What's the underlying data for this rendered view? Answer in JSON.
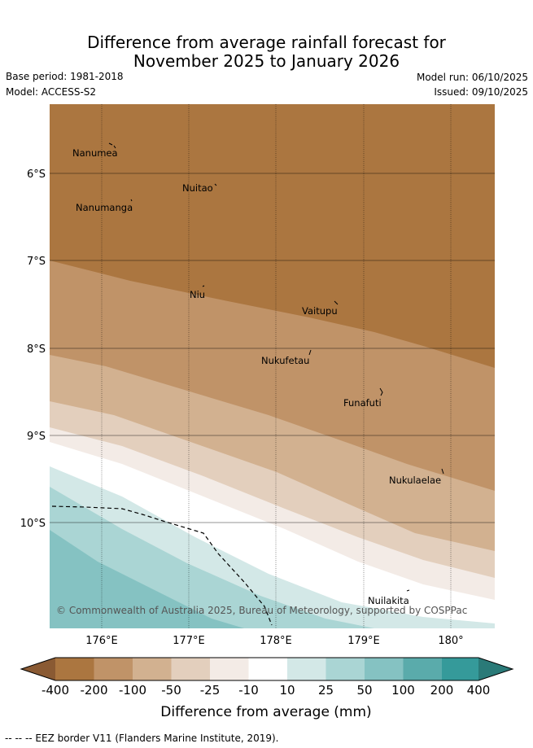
{
  "header": {
    "title_line1": "Difference from average rainfall forecast for",
    "title_line2": "November 2025 to January 2026",
    "base_period": "Base period: 1981-2018",
    "model": "Model: ACCESS-S2",
    "model_run": "Model run: 06/10/2025",
    "issued": "Issued: 09/10/2025"
  },
  "map": {
    "lat_labels": [
      "6°S",
      "7°S",
      "8°S",
      "9°S",
      "10°S"
    ],
    "lon_labels": [
      "176°E",
      "177°E",
      "178°E",
      "179°E",
      "180°"
    ],
    "places": [
      {
        "name": "Nanumea"
      },
      {
        "name": "Nuitao"
      },
      {
        "name": "Nanumanga"
      },
      {
        "name": "Niu"
      },
      {
        "name": "Vaitupu"
      },
      {
        "name": "Nukufetau"
      },
      {
        "name": "Funafuti"
      },
      {
        "name": "Nukulaelae"
      },
      {
        "name": "Nuilakita"
      }
    ],
    "copyright": "© Commonwealth of Australia 2025, Bureau of Meteorology, supported by COSPPac"
  },
  "legend": {
    "colors": [
      "#8a5a33",
      "#ab7640",
      "#c09368",
      "#d2b190",
      "#e3cfbd",
      "#f3ebe6",
      "#ffffff",
      "#d3e8e7",
      "#aad5d4",
      "#85c2c2",
      "#5aabab",
      "#359a9a",
      "#2a7a78"
    ],
    "ticks": [
      "-400",
      "-200",
      "-100",
      "-50",
      "-25",
      "-10",
      "10",
      "25",
      "50",
      "100",
      "200",
      "400"
    ],
    "title": "Difference from average (mm)"
  },
  "footnote": "-- -- -- EEZ border V11 (Flanders Marine Institute, 2019)."
}
